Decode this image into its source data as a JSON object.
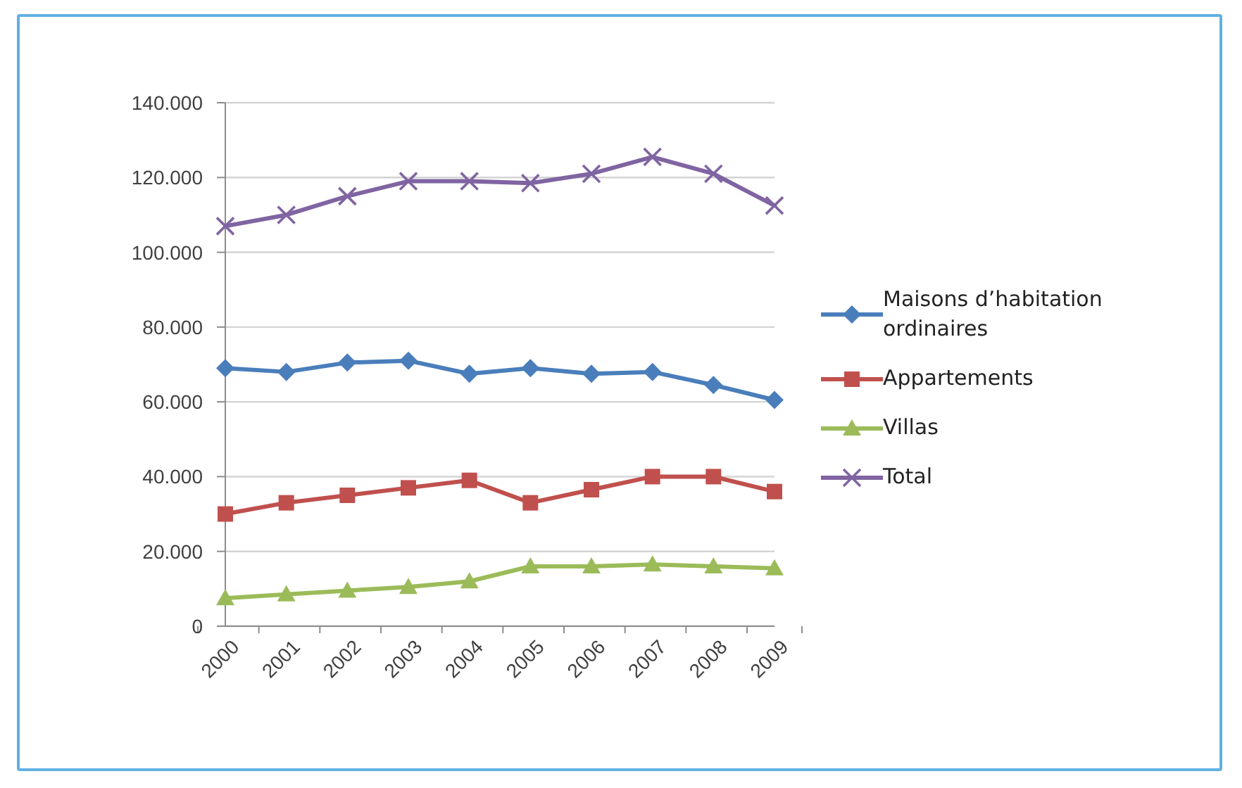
{
  "chart_data": {
    "type": "line",
    "categories": [
      "2000",
      "2001",
      "2002",
      "2003",
      "2004",
      "2005",
      "2006",
      "2007",
      "2008",
      "2009"
    ],
    "series": [
      {
        "name": "Maisons d’habitation ordinaires",
        "color": "#4a7ebb",
        "marker": "diamond",
        "values": [
          69000,
          68000,
          70500,
          71000,
          67500,
          69000,
          67500,
          68000,
          64500,
          60500
        ]
      },
      {
        "name": "Appartements",
        "color": "#c0504d",
        "marker": "square",
        "values": [
          30000,
          33000,
          35000,
          37000,
          39000,
          33000,
          36500,
          40000,
          40000,
          36000
        ]
      },
      {
        "name": "Villas",
        "color": "#9bbb59",
        "marker": "triangle",
        "values": [
          7500,
          8500,
          9500,
          10500,
          12000,
          16000,
          16000,
          16500,
          16000,
          15500
        ]
      },
      {
        "name": "Total",
        "color": "#8064a2",
        "marker": "cross",
        "values": [
          107000,
          110000,
          115000,
          119000,
          119000,
          118500,
          121000,
          125500,
          121000,
          112500
        ]
      }
    ],
    "ylim": [
      0,
      140000
    ],
    "yticks": [
      0,
      {
        "value": 20000,
        "label": "20.000"
      },
      {
        "value": 40000,
        "label": "40.000"
      },
      {
        "value": 60000,
        "label": "60.000"
      },
      {
        "value": 80000,
        "label": "80.000"
      },
      {
        "value": 100000,
        "label": "100.000"
      },
      {
        "value": 120000,
        "label": "120.000"
      },
      {
        "value": 140000,
        "label": "140.000"
      }
    ],
    "grid": "y",
    "legend": "right",
    "line_style": "solid"
  }
}
